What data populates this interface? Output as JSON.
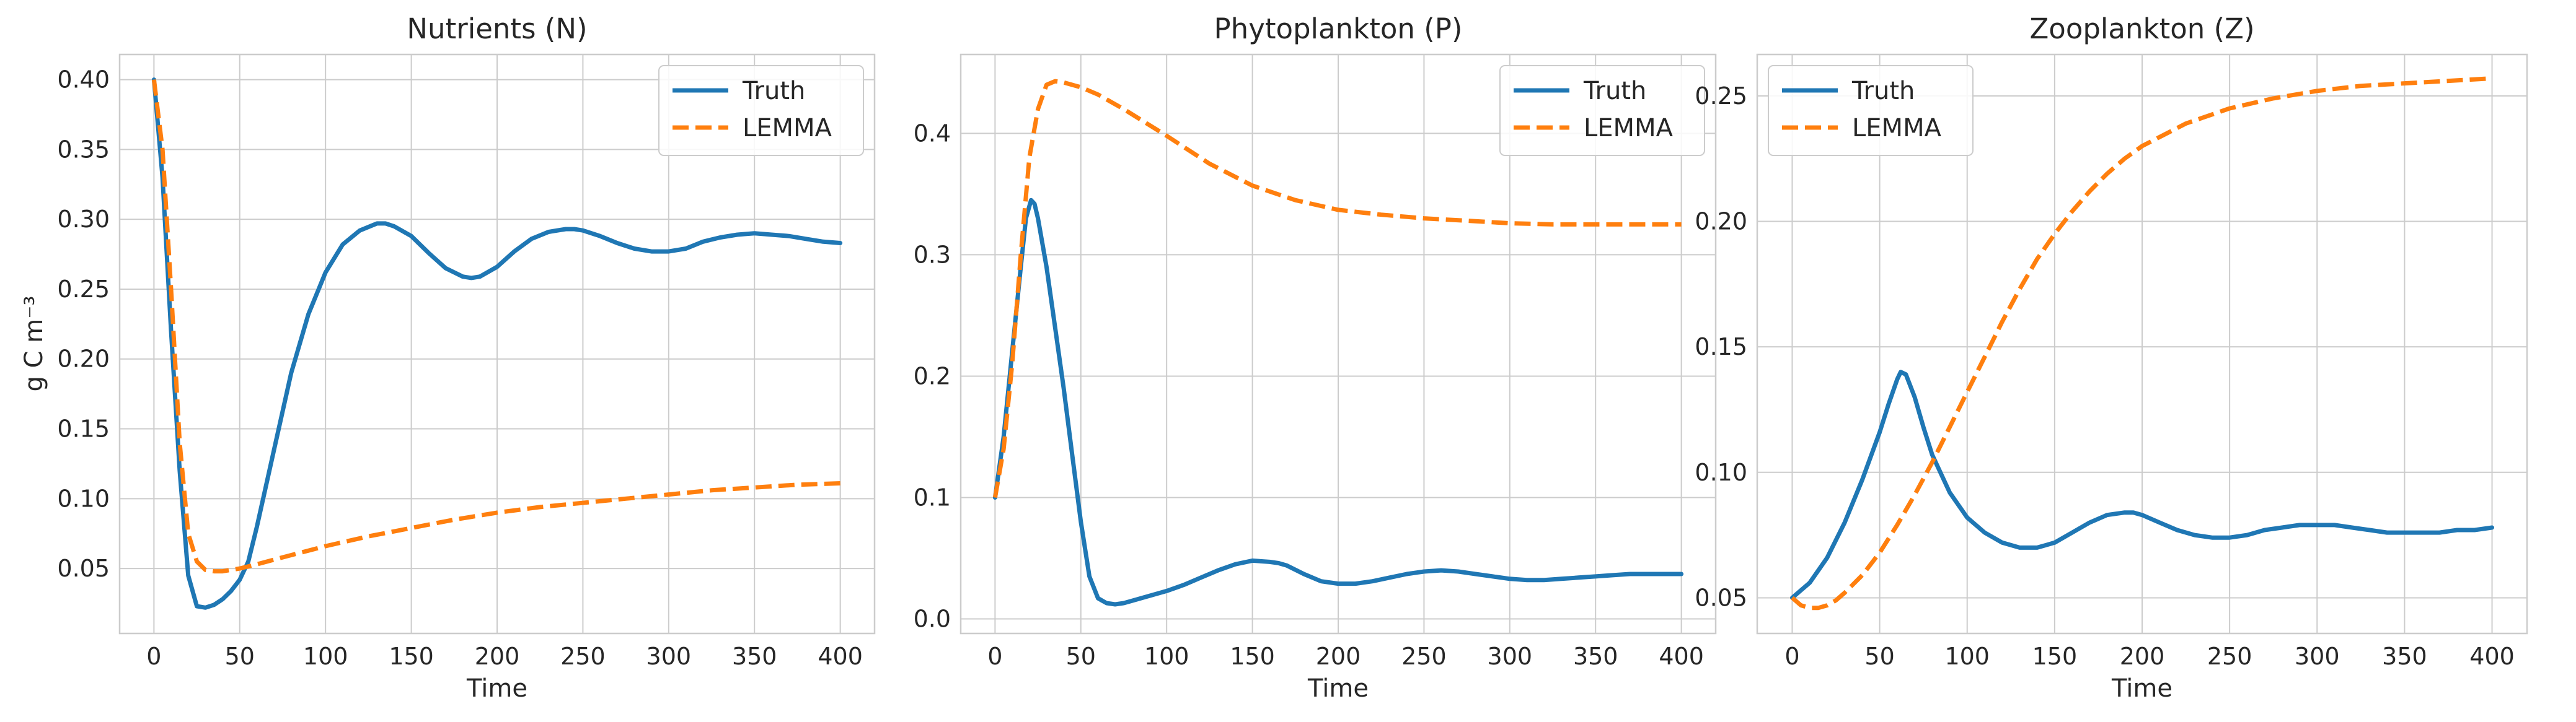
{
  "figure": {
    "background": "#ffffff",
    "grid_color": "#cccccc",
    "spine_color": "#cccccc",
    "truth_color": "#1f77b4",
    "lemma_color": "#ff7f0e"
  },
  "chart_data": [
    {
      "type": "line",
      "title": "Nutrients (N)",
      "xlabel": "Time",
      "ylabel": "g C m⁻³",
      "xlim": [
        -20,
        420
      ],
      "ylim": [
        0.0035,
        0.418
      ],
      "xticks": [
        0,
        50,
        100,
        150,
        200,
        250,
        300,
        350,
        400
      ],
      "yticks": [
        0.05,
        0.1,
        0.15,
        0.2,
        0.25,
        0.3,
        0.35,
        0.4
      ],
      "ytick_labels": [
        "0.05",
        "0.10",
        "0.15",
        "0.20",
        "0.25",
        "0.30",
        "0.35",
        "0.40"
      ],
      "grid": true,
      "legend_position": "upper right",
      "series": [
        {
          "name": "Truth",
          "style": "solid",
          "color": "#1f77b4",
          "x": [
            0,
            5,
            10,
            15,
            20,
            25,
            30,
            35,
            40,
            45,
            50,
            55,
            60,
            70,
            80,
            90,
            100,
            110,
            120,
            130,
            135,
            140,
            150,
            160,
            170,
            180,
            185,
            190,
            200,
            210,
            220,
            230,
            240,
            245,
            250,
            260,
            270,
            280,
            290,
            300,
            310,
            320,
            330,
            340,
            350,
            360,
            370,
            380,
            390,
            400
          ],
          "y": [
            0.4,
            0.33,
            0.22,
            0.12,
            0.045,
            0.023,
            0.022,
            0.024,
            0.028,
            0.034,
            0.042,
            0.055,
            0.08,
            0.135,
            0.19,
            0.232,
            0.262,
            0.282,
            0.292,
            0.297,
            0.297,
            0.295,
            0.288,
            0.276,
            0.265,
            0.259,
            0.258,
            0.259,
            0.266,
            0.277,
            0.286,
            0.291,
            0.293,
            0.293,
            0.292,
            0.288,
            0.283,
            0.279,
            0.277,
            0.277,
            0.279,
            0.284,
            0.287,
            0.289,
            0.29,
            0.289,
            0.288,
            0.286,
            0.284,
            0.283
          ]
        },
        {
          "name": "LEMMA",
          "style": "dashed",
          "color": "#ff7f0e",
          "x": [
            0,
            5,
            10,
            15,
            20,
            25,
            30,
            35,
            40,
            50,
            60,
            75,
            100,
            125,
            150,
            175,
            200,
            225,
            250,
            275,
            300,
            325,
            350,
            375,
            400
          ],
          "y": [
            0.4,
            0.35,
            0.25,
            0.14,
            0.075,
            0.055,
            0.049,
            0.048,
            0.048,
            0.05,
            0.053,
            0.058,
            0.066,
            0.073,
            0.079,
            0.085,
            0.09,
            0.094,
            0.097,
            0.1,
            0.103,
            0.106,
            0.108,
            0.11,
            0.111
          ]
        }
      ]
    },
    {
      "type": "line",
      "title": "Phytoplankton (P)",
      "xlabel": "Time",
      "ylabel": "",
      "xlim": [
        -20,
        420
      ],
      "ylim": [
        -0.012,
        0.465
      ],
      "xticks": [
        0,
        50,
        100,
        150,
        200,
        250,
        300,
        350,
        400
      ],
      "yticks": [
        0.0,
        0.1,
        0.2,
        0.3,
        0.4
      ],
      "ytick_labels": [
        "0.0",
        "0.1",
        "0.2",
        "0.3",
        "0.4"
      ],
      "grid": true,
      "legend_position": "upper right",
      "series": [
        {
          "name": "Truth",
          "style": "solid",
          "color": "#1f77b4",
          "x": [
            0,
            5,
            10,
            15,
            18,
            21,
            23,
            25,
            30,
            35,
            40,
            45,
            50,
            55,
            60,
            65,
            70,
            75,
            80,
            90,
            100,
            110,
            120,
            130,
            140,
            150,
            160,
            165,
            170,
            180,
            190,
            200,
            210,
            220,
            230,
            240,
            250,
            260,
            270,
            275,
            280,
            290,
            300,
            310,
            320,
            330,
            340,
            350,
            360,
            370,
            380,
            390,
            400
          ],
          "y": [
            0.1,
            0.15,
            0.22,
            0.29,
            0.33,
            0.345,
            0.342,
            0.33,
            0.29,
            0.24,
            0.19,
            0.135,
            0.08,
            0.035,
            0.017,
            0.013,
            0.012,
            0.013,
            0.015,
            0.019,
            0.023,
            0.028,
            0.034,
            0.04,
            0.045,
            0.048,
            0.047,
            0.046,
            0.044,
            0.037,
            0.031,
            0.029,
            0.029,
            0.031,
            0.034,
            0.037,
            0.039,
            0.04,
            0.039,
            0.038,
            0.037,
            0.035,
            0.033,
            0.032,
            0.032,
            0.033,
            0.034,
            0.035,
            0.036,
            0.037,
            0.037,
            0.037,
            0.037
          ]
        },
        {
          "name": "LEMMA",
          "style": "dashed",
          "color": "#ff7f0e",
          "x": [
            0,
            5,
            10,
            15,
            20,
            25,
            30,
            35,
            40,
            50,
            60,
            75,
            100,
            125,
            150,
            175,
            200,
            225,
            250,
            275,
            300,
            325,
            350,
            375,
            400
          ],
          "y": [
            0.1,
            0.14,
            0.21,
            0.3,
            0.38,
            0.42,
            0.44,
            0.443,
            0.442,
            0.438,
            0.432,
            0.42,
            0.398,
            0.375,
            0.357,
            0.345,
            0.337,
            0.333,
            0.33,
            0.328,
            0.326,
            0.325,
            0.325,
            0.325,
            0.325
          ]
        }
      ]
    },
    {
      "type": "line",
      "title": "Zooplankton (Z)",
      "xlabel": "Time",
      "ylabel": "",
      "xlim": [
        -20,
        420
      ],
      "ylim": [
        0.0358,
        0.2665
      ],
      "xticks": [
        0,
        50,
        100,
        150,
        200,
        250,
        300,
        350,
        400
      ],
      "yticks": [
        0.05,
        0.1,
        0.15,
        0.2,
        0.25
      ],
      "ytick_labels": [
        "0.05",
        "0.10",
        "0.15",
        "0.20",
        "0.25"
      ],
      "grid": true,
      "legend_position": "upper left",
      "series": [
        {
          "name": "Truth",
          "style": "solid",
          "color": "#1f77b4",
          "x": [
            0,
            10,
            20,
            30,
            40,
            50,
            55,
            60,
            62,
            65,
            70,
            75,
            80,
            90,
            100,
            110,
            120,
            130,
            140,
            150,
            160,
            170,
            180,
            190,
            195,
            200,
            210,
            220,
            230,
            240,
            250,
            260,
            270,
            280,
            290,
            300,
            305,
            310,
            320,
            330,
            340,
            350,
            360,
            370,
            380,
            390,
            400
          ],
          "y": [
            0.05,
            0.056,
            0.066,
            0.08,
            0.097,
            0.116,
            0.127,
            0.137,
            0.14,
            0.139,
            0.13,
            0.118,
            0.107,
            0.092,
            0.082,
            0.076,
            0.072,
            0.07,
            0.07,
            0.072,
            0.076,
            0.08,
            0.083,
            0.084,
            0.084,
            0.083,
            0.08,
            0.077,
            0.075,
            0.074,
            0.074,
            0.075,
            0.077,
            0.078,
            0.079,
            0.079,
            0.079,
            0.079,
            0.078,
            0.077,
            0.076,
            0.076,
            0.076,
            0.076,
            0.077,
            0.077,
            0.078
          ]
        },
        {
          "name": "LEMMA",
          "style": "dashed",
          "color": "#ff7f0e",
          "x": [
            0,
            5,
            10,
            15,
            20,
            25,
            30,
            40,
            50,
            60,
            70,
            80,
            90,
            100,
            110,
            120,
            130,
            140,
            150,
            160,
            170,
            180,
            190,
            200,
            225,
            250,
            275,
            300,
            325,
            350,
            375,
            400
          ],
          "y": [
            0.05,
            0.047,
            0.046,
            0.046,
            0.047,
            0.049,
            0.052,
            0.059,
            0.068,
            0.079,
            0.091,
            0.104,
            0.118,
            0.132,
            0.146,
            0.16,
            0.173,
            0.185,
            0.195,
            0.204,
            0.212,
            0.219,
            0.225,
            0.23,
            0.239,
            0.245,
            0.249,
            0.252,
            0.254,
            0.255,
            0.256,
            0.257
          ]
        }
      ]
    }
  ]
}
